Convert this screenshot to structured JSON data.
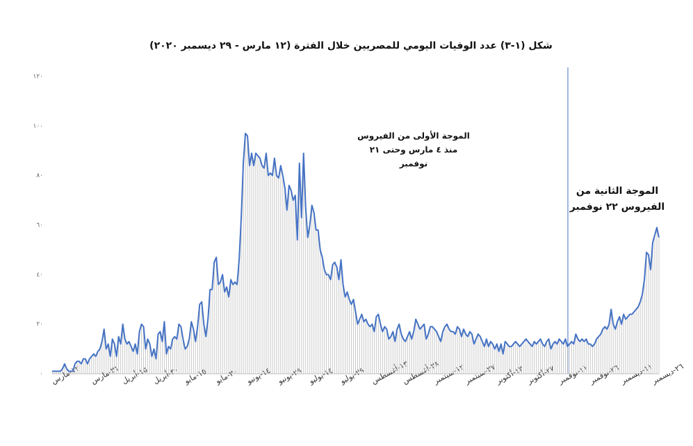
{
  "chart_data": {
    "type": "line",
    "title": "شكل (١-٣) عدد الوفيات اليومي للمصريين خلال الفترة (١٢ مارس - ٢٩ ديسمبر ٢٠٢٠)",
    "annotations": [
      {
        "lines": [
          "الموجة الأولى من الفيروس",
          "منذ ٤ مارس وحتى ٢١",
          "نوفمبر"
        ]
      },
      {
        "lines": [
          "الموجة الثانية من",
          "الفيروس ٢٢ نوفمبر"
        ]
      }
    ],
    "color": "#4472c4",
    "bar_color": "#c8c8c8",
    "ylim": [
      0,
      120
    ],
    "yticks": [
      {
        "value": 0,
        "label": "٠"
      },
      {
        "value": 20,
        "label": "٢٠"
      },
      {
        "value": 40,
        "label": "٤٠"
      },
      {
        "value": 60,
        "label": "٦٠"
      },
      {
        "value": 80,
        "label": "٨٠"
      },
      {
        "value": 100,
        "label": "١٠٠"
      },
      {
        "value": 120,
        "label": "١٢٠"
      }
    ],
    "categories": [
      "١٢-مارس",
      null,
      null,
      null,
      null,
      null,
      null,
      null,
      null,
      null,
      null,
      null,
      null,
      null,
      null,
      null,
      null,
      null,
      null,
      "٣١-مارس",
      null,
      null,
      null,
      null,
      null,
      null,
      null,
      null,
      null,
      null,
      null,
      null,
      null,
      null,
      "١٥-أبريل",
      null,
      null,
      null,
      null,
      null,
      null,
      null,
      null,
      null,
      null,
      null,
      null,
      null,
      null,
      "٣٠-أبريل",
      null,
      null,
      null,
      null,
      null,
      null,
      null,
      null,
      null,
      null,
      null,
      null,
      null,
      null,
      "١٥-مايو",
      null,
      null,
      null,
      null,
      null,
      null,
      null,
      null,
      null,
      null,
      null,
      null,
      null,
      null,
      "٣٠-مايو",
      null,
      null,
      null,
      null,
      null,
      null,
      null,
      null,
      null,
      null,
      null,
      null,
      null,
      null,
      "١٤-يونيو",
      null,
      null,
      null,
      null,
      null,
      null,
      null,
      null,
      null,
      null,
      null,
      null,
      null,
      null,
      "٢٩-يونيو",
      null,
      null,
      null,
      null,
      null,
      null,
      null,
      null,
      null,
      null,
      null,
      null,
      null,
      null,
      "١٤-يوليو",
      null,
      null,
      null,
      null,
      null,
      null,
      null,
      null,
      null,
      null,
      null,
      null,
      null,
      null,
      "٢٩-يوليو",
      null,
      null,
      null,
      null,
      null,
      null,
      null,
      null,
      null,
      null,
      null,
      null,
      null,
      null,
      "١٣-أغسطس",
      null,
      null,
      null,
      null,
      null,
      null,
      null,
      null,
      null,
      null,
      null,
      null,
      null,
      null,
      "٢٨-أغسطس",
      null,
      null,
      null,
      null,
      null,
      null,
      null,
      null,
      null,
      null,
      null,
      null,
      null,
      null,
      "١٢-سبتمبر",
      null,
      null,
      null,
      null,
      null,
      null,
      null,
      null,
      null,
      null,
      null,
      null,
      null,
      null,
      "٢٧-سبتمبر",
      null,
      null,
      null,
      null,
      null,
      null,
      null,
      null,
      null,
      null,
      null,
      null,
      null,
      null,
      "١٢-أكتوبر",
      null,
      null,
      null,
      null,
      null,
      null,
      null,
      null,
      null,
      null,
      null,
      null,
      null,
      null,
      "٢٧-أكتوبر",
      null,
      null,
      null,
      null,
      null,
      null,
      null,
      null,
      null,
      null,
      null,
      null,
      null,
      null,
      "١١-نوفمبر",
      null,
      null,
      null,
      null,
      null,
      null,
      null,
      null,
      null,
      null,
      null,
      null,
      null,
      null,
      "٢٦-نوفمبر",
      null,
      null,
      null,
      null,
      null,
      null,
      null,
      null,
      null,
      null,
      null,
      null,
      null,
      null,
      "١١-ديسمبر",
      null,
      null,
      null,
      null,
      null,
      null,
      null,
      null,
      null,
      null,
      null,
      null,
      null,
      null,
      "٢٦-ديسمبر",
      null,
      null,
      null
    ],
    "values": [
      1,
      1,
      1,
      1,
      1,
      2,
      4,
      2,
      1,
      1,
      1,
      4,
      5,
      5,
      4,
      6,
      6,
      4,
      6,
      7,
      8,
      7,
      9,
      10,
      13,
      18,
      10,
      12,
      7,
      14,
      12,
      7,
      15,
      12,
      20,
      14,
      12,
      13,
      11,
      9,
      12,
      8,
      17,
      20,
      19,
      10,
      14,
      12,
      7,
      10,
      6,
      16,
      17,
      13,
      21,
      8,
      11,
      10,
      14,
      15,
      14,
      20,
      19,
      14,
      10,
      11,
      14,
      21,
      18,
      13,
      19,
      28,
      29,
      20,
      15,
      22,
      34,
      34,
      45,
      47,
      36,
      37,
      40,
      33,
      35,
      31,
      38,
      36,
      37,
      36,
      46,
      63,
      85,
      97,
      96,
      84,
      89,
      84,
      89,
      88,
      87,
      84,
      83,
      89,
      80,
      81,
      80,
      87,
      80,
      79,
      84,
      80,
      75,
      66,
      76,
      74,
      70,
      72,
      54,
      85,
      63,
      89,
      67,
      55,
      60,
      68,
      65,
      58,
      58,
      50,
      47,
      42,
      40,
      40,
      38,
      44,
      45,
      43,
      38,
      46,
      36,
      31,
      33,
      30,
      28,
      30,
      25,
      20,
      22,
      24,
      21,
      22,
      20,
      19,
      20,
      17,
      23,
      24,
      20,
      17,
      19,
      18,
      14,
      15,
      17,
      13,
      18,
      20,
      16,
      14,
      13,
      15,
      17,
      14,
      17,
      22,
      20,
      18,
      19,
      20,
      14,
      16,
      19,
      19,
      18,
      17,
      15,
      13,
      17,
      19,
      20,
      18,
      17,
      17,
      16,
      19,
      18,
      15,
      18,
      16,
      15,
      17,
      16,
      12,
      14,
      16,
      15,
      13,
      11,
      14,
      11,
      13,
      12,
      10,
      12,
      9,
      12,
      8,
      13,
      12,
      11,
      11,
      12,
      13,
      12,
      11,
      12,
      13,
      14,
      13,
      12,
      11,
      13,
      12,
      13,
      14,
      12,
      11,
      13,
      14,
      10,
      12,
      13,
      12,
      14,
      13,
      12,
      14,
      11,
      12,
      13,
      12,
      16,
      14,
      13,
      14,
      13,
      14,
      12,
      12,
      11,
      12,
      14,
      15,
      16,
      18,
      19,
      18,
      20,
      26,
      20,
      18,
      21,
      23,
      20,
      24,
      22,
      23,
      24,
      24,
      25,
      26,
      27,
      29,
      32,
      38,
      49,
      48,
      42,
      53,
      56,
      59,
      55
    ]
  }
}
